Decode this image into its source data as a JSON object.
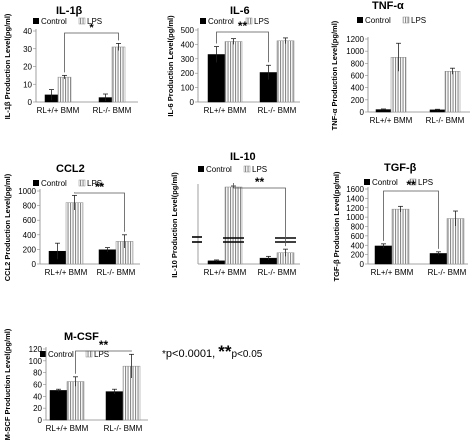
{
  "footnote": {
    "single_mark": "*",
    "single_text": "p<0.0001,",
    "double_mark": "**",
    "double_text": "p<0.05"
  },
  "colors": {
    "control": "#000000",
    "lps": "striped-gray",
    "axis": "#888888"
  },
  "chart_data": [
    {
      "type": "bar",
      "title": "IL-1β",
      "ylabel": "IL-1β Production Level(pg/ml)",
      "categories": [
        "RL+/+ BMM",
        "RL-/- BMM"
      ],
      "ylim": [
        0,
        40
      ],
      "yticks": [
        0,
        10,
        20,
        30,
        40
      ],
      "legend": [
        "Control",
        "LPS"
      ],
      "series": [
        {
          "name": "Control",
          "values": [
            4,
            2.5
          ],
          "errors": [
            3,
            2
          ]
        },
        {
          "name": "LPS",
          "values": [
            14,
            31
          ],
          "errors": [
            1,
            2
          ]
        }
      ],
      "significance": [
        {
          "label": "*",
          "from": "RL+/+ BMM LPS",
          "to": "RL-/- BMM LPS"
        }
      ]
    },
    {
      "type": "bar",
      "title": "IL-6",
      "ylabel": "IL-6 Production Level(pg/ml)",
      "categories": [
        "RL+/+ BMM",
        "RL-/- BMM"
      ],
      "ylim": [
        0,
        500
      ],
      "yticks": [
        0,
        100,
        200,
        300,
        400,
        500
      ],
      "legend": [
        "Control",
        "LPS"
      ],
      "series": [
        {
          "name": "Control",
          "values": [
            330,
            205
          ],
          "errors": [
            55,
            50
          ]
        },
        {
          "name": "LPS",
          "values": [
            420,
            425
          ],
          "errors": [
            20,
            20
          ]
        }
      ],
      "significance": [
        {
          "label": "**",
          "from": "RL+/+ BMM Control",
          "to": "RL-/- BMM Control"
        }
      ]
    },
    {
      "type": "bar",
      "title": "TNF-α",
      "ylabel": "TNF-α Production Level(pg/ml)",
      "categories": [
        "RL+/+ BMM",
        "RL-/- BMM"
      ],
      "ylim": [
        0,
        1200
      ],
      "yticks": [
        0,
        200,
        400,
        600,
        800,
        1000,
        1200
      ],
      "legend": [
        "Control",
        "LPS"
      ],
      "series": [
        {
          "name": "Control",
          "values": [
            40,
            35
          ],
          "errors": [
            10,
            10
          ]
        },
        {
          "name": "LPS",
          "values": [
            900,
            670
          ],
          "errors": [
            230,
            50
          ]
        }
      ],
      "significance": []
    },
    {
      "type": "bar",
      "title": "CCL2",
      "ylabel": "CCL2 Production Level(pg/ml)",
      "categories": [
        "RL+/+ BMM",
        "RL-/- BMM"
      ],
      "ylim": [
        0,
        1000
      ],
      "yticks": [
        0,
        200,
        400,
        600,
        800,
        1000
      ],
      "legend": [
        "Control",
        "LPS"
      ],
      "series": [
        {
          "name": "Control",
          "values": [
            175,
            195
          ],
          "errors": [
            110,
            30
          ]
        },
        {
          "name": "LPS",
          "values": [
            840,
            310
          ],
          "errors": [
            100,
            90
          ]
        }
      ],
      "significance": [
        {
          "label": "**",
          "from": "RL+/+ BMM LPS",
          "to": "RL-/- BMM LPS"
        }
      ]
    },
    {
      "type": "bar",
      "title": "IL-10",
      "ylabel": "IL-10 Production Level(pg/ml)",
      "categories": [
        "RL+/+ BMM",
        "RL-/- BMM"
      ],
      "ylim": [
        0,
        3000
      ],
      "yticks": [],
      "legend": [
        "Control",
        "LPS"
      ],
      "series": [
        {
          "name": "Control",
          "values": [
            70,
            130
          ],
          "errors": [
            20,
            40
          ]
        },
        {
          "name": "LPS",
          "values": [
            2950,
            250
          ],
          "errors": [
            50,
            80
          ]
        }
      ],
      "axis_break": true,
      "significance": [
        {
          "label": "**",
          "from": "RL+/+ BMM LPS",
          "to": "RL-/- BMM LPS"
        }
      ]
    },
    {
      "type": "bar",
      "title": "TGF-β",
      "ylabel": "TGF-β Production Level(pg/ml)",
      "categories": [
        "RL+/+ BMM",
        "RL-/- BMM"
      ],
      "ylim": [
        0,
        1600
      ],
      "yticks": [
        0,
        200,
        400,
        600,
        800,
        1000,
        1200,
        1400,
        1600
      ],
      "legend": [
        "Control",
        "LPS"
      ],
      "series": [
        {
          "name": "Control",
          "values": [
            385,
            225
          ],
          "errors": [
            45,
            35
          ]
        },
        {
          "name": "LPS",
          "values": [
            1170,
            970
          ],
          "errors": [
            60,
            160
          ]
        }
      ],
      "significance": [
        {
          "label": "**",
          "from": "RL+/+ BMM Control",
          "to": "RL-/- BMM Control"
        }
      ]
    },
    {
      "type": "bar",
      "title": "M-CSF",
      "ylabel": "M-SCF Production Level(pg/ml)",
      "categories": [
        "RL+/+ BMM",
        "RL-/- BMM"
      ],
      "ylim": [
        0,
        120
      ],
      "yticks": [
        0,
        20,
        40,
        60,
        80,
        100,
        120
      ],
      "legend": [
        "Control",
        "LPS"
      ],
      "series": [
        {
          "name": "Control",
          "values": [
            50,
            48
          ],
          "errors": [
            2,
            4
          ]
        },
        {
          "name": "LPS",
          "values": [
            65,
            91
          ],
          "errors": [
            8,
            20
          ]
        }
      ],
      "significance": [
        {
          "label": "**",
          "from": "RL+/+ BMM LPS",
          "to": "RL-/- BMM LPS"
        }
      ]
    }
  ]
}
